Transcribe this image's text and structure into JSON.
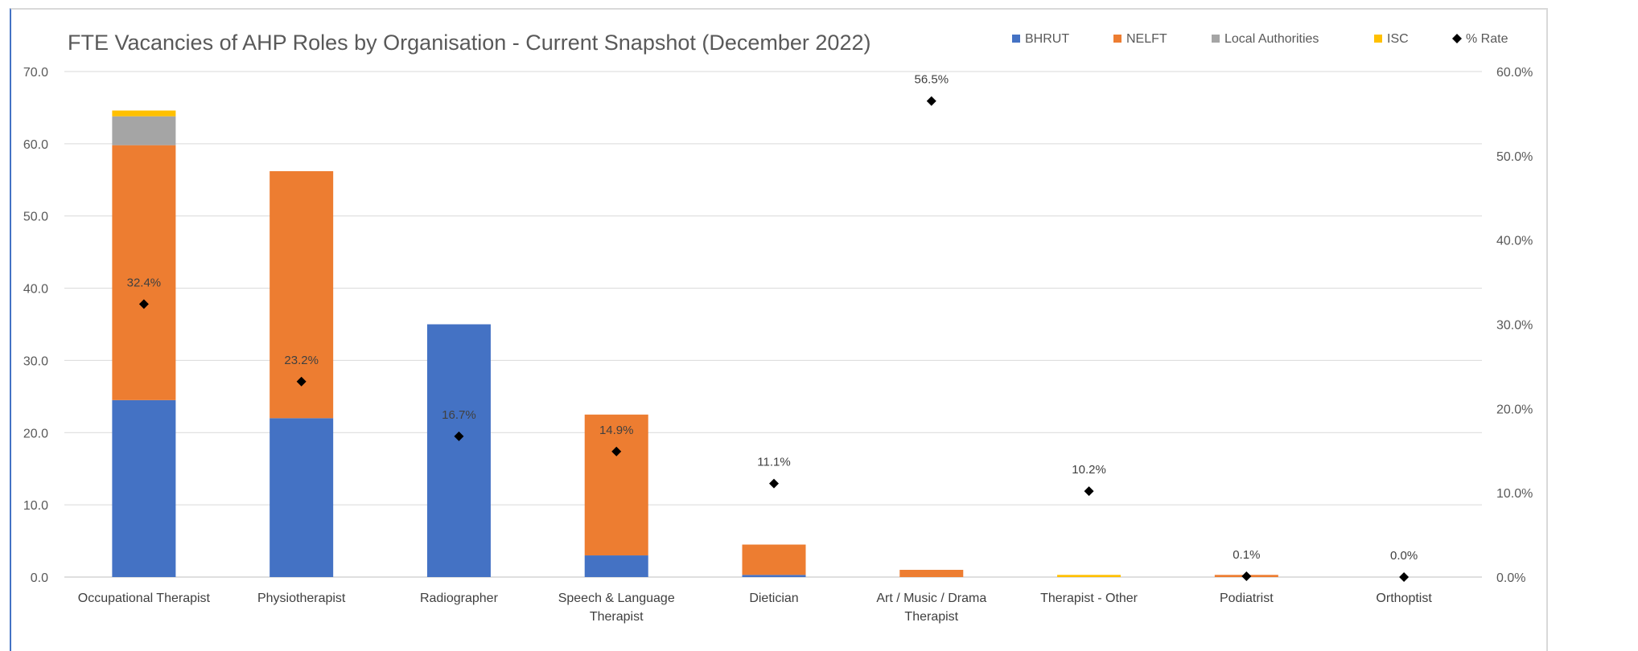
{
  "chart_data": {
    "type": "bar",
    "stacked": true,
    "title": "FTE Vacancies of AHP Roles by Organisation - Current Snapshot (December 2022)",
    "categories": [
      [
        "Occupational Therapist"
      ],
      [
        "Physiotherapist"
      ],
      [
        "Radiographer"
      ],
      [
        "Speech & Language",
        "Therapist"
      ],
      [
        "Dietician"
      ],
      [
        "Art / Music / Drama",
        "Therapist"
      ],
      [
        "Therapist - Other"
      ],
      [
        "Podiatrist"
      ],
      [
        "Orthoptist"
      ]
    ],
    "series": [
      {
        "name": "BHRUT",
        "color": "#4472c4",
        "values": [
          24.5,
          22.0,
          35.0,
          3.0,
          0.3,
          0.0,
          0.0,
          0.0,
          0.0
        ]
      },
      {
        "name": "NELFT",
        "color": "#ed7d31",
        "values": [
          35.3,
          34.2,
          0.0,
          19.5,
          4.2,
          1.0,
          0.0,
          0.3,
          0.0
        ]
      },
      {
        "name": "Local Authorities",
        "color": "#a5a5a5",
        "values": [
          4.0,
          0.0,
          0.0,
          0.0,
          0.0,
          0.0,
          0.0,
          0.0,
          0.0
        ]
      },
      {
        "name": "ISC",
        "color": "#ffc000",
        "values": [
          0.8,
          0.0,
          0.0,
          0.0,
          0.0,
          0.0,
          0.3,
          0.0,
          0.0
        ]
      }
    ],
    "rate_series": {
      "name": "% Rate",
      "color": "#000000",
      "marker": "diamond",
      "values": [
        32.4,
        23.2,
        16.7,
        14.9,
        11.1,
        56.5,
        10.2,
        0.1,
        0.0
      ],
      "labels": [
        "32.4%",
        "23.2%",
        "16.7%",
        "14.9%",
        "11.1%",
        "56.5%",
        "10.2%",
        "0.1%",
        "0.0%"
      ]
    },
    "y_left": {
      "min": 0,
      "max": 70,
      "ticks": [
        "0.0",
        "10.0",
        "20.0",
        "30.0",
        "40.0",
        "50.0",
        "60.0",
        "70.0"
      ]
    },
    "y_right": {
      "min": 0,
      "max": 60,
      "ticks": [
        "0.0%",
        "10.0%",
        "20.0%",
        "30.0%",
        "40.0%",
        "50.0%",
        "60.0%"
      ]
    },
    "grid": true,
    "legend_position": "top-right"
  }
}
